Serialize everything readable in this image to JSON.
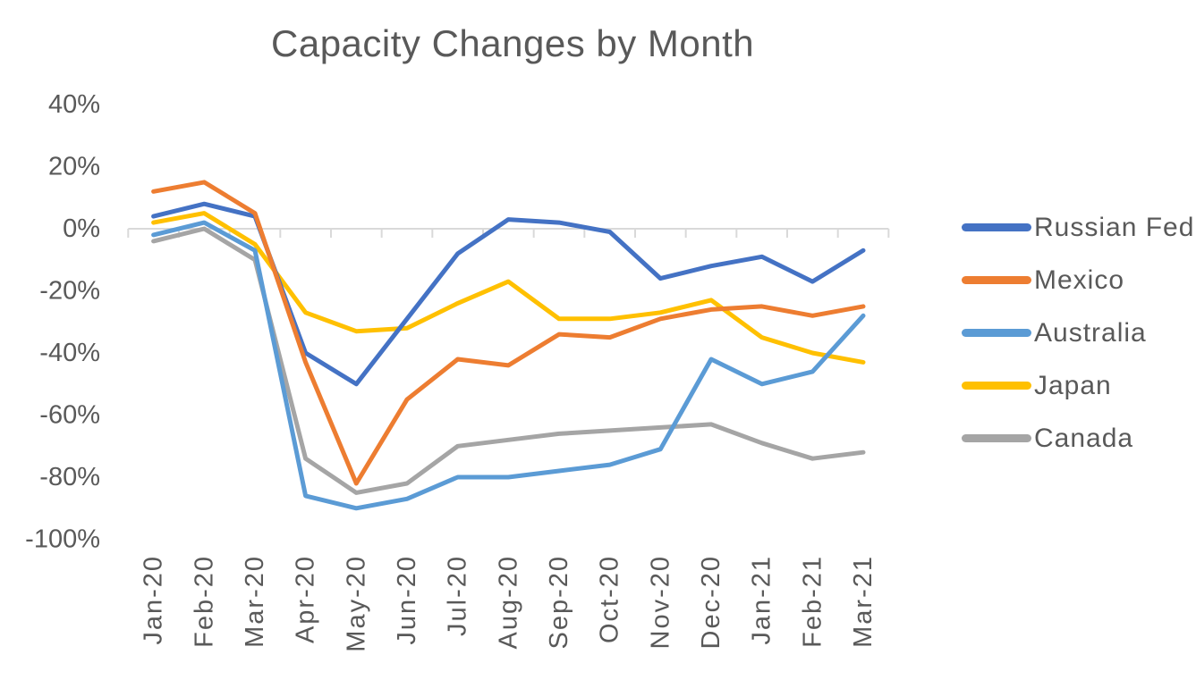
{
  "page": {
    "background": "#FFFFFF"
  },
  "chart_data": {
    "type": "line",
    "title": "Capacity Changes by Month",
    "unit": "%",
    "categories": [
      "Jan-20",
      "Feb-20",
      "Mar-20",
      "Apr-20",
      "May-20",
      "Jun-20",
      "Jul-20",
      "Aug-20",
      "Sep-20",
      "Oct-20",
      "Nov-20",
      "Dec-20",
      "Jan-21",
      "Feb-21",
      "Mar-21"
    ],
    "series": [
      {
        "name": "Russian Fed",
        "color": "#4472C4",
        "values": [
          4,
          8,
          4,
          -40,
          -50,
          -29,
          -8,
          3,
          2,
          -1,
          -16,
          -12,
          -9,
          -17,
          -7
        ]
      },
      {
        "name": "Mexico",
        "color": "#ED7D31",
        "values": [
          12,
          15,
          5,
          -43,
          -82,
          -55,
          -42,
          -44,
          -34,
          -35,
          -29,
          -26,
          -25,
          -28,
          -25
        ]
      },
      {
        "name": "Australia",
        "color": "#5B9BD5",
        "values": [
          -2,
          2,
          -7,
          -86,
          -90,
          -87,
          -80,
          -80,
          -78,
          -76,
          -71,
          -42,
          -50,
          -46,
          -28
        ]
      },
      {
        "name": "Japan",
        "color": "#FFC000",
        "values": [
          2,
          5,
          -5,
          -27,
          -33,
          -32,
          -24,
          -17,
          -29,
          -29,
          -27,
          -23,
          -35,
          -40,
          -43
        ]
      },
      {
        "name": "Canada",
        "color": "#A5A5A5",
        "values": [
          -4,
          0,
          -10,
          -74,
          -85,
          -82,
          -70,
          -68,
          -66,
          -65,
          -64,
          -63,
          -69,
          -74,
          -72
        ]
      }
    ],
    "ylim": [
      -100,
      40
    ],
    "y_ticks": [
      {
        "value": 40,
        "label": "40%"
      },
      {
        "value": 20,
        "label": "20%"
      },
      {
        "value": 0,
        "label": "0%"
      },
      {
        "value": -20,
        "label": "-20%"
      },
      {
        "value": -40,
        "label": "-40%"
      },
      {
        "value": -60,
        "label": "-60%"
      },
      {
        "value": -80,
        "label": "-80%"
      },
      {
        "value": -100,
        "label": "-100%"
      }
    ],
    "x_label_rotation_degrees": -90,
    "legend_position": "right",
    "gridlines": "none",
    "axis_line": "zero-baseline with down ticks at category boundaries",
    "axis_color": "#D9D9D9",
    "text_color": "#595959"
  }
}
